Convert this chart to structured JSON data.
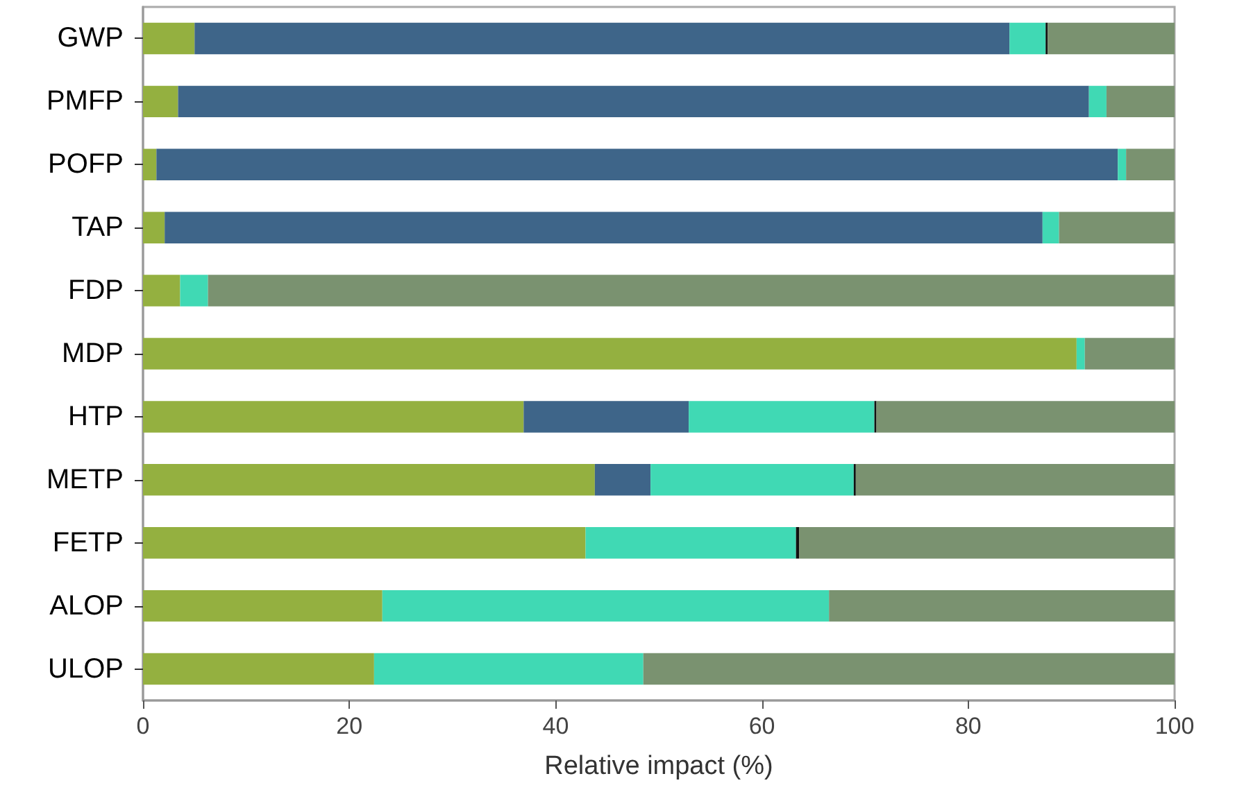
{
  "chart_data": {
    "type": "bar",
    "orientation": "horizontal",
    "stacked": true,
    "xlabel": "Relative impact (%)",
    "categories": [
      "GWP",
      "PMFP",
      "POFP",
      "TAP",
      "FDP",
      "MDP",
      "HTP",
      "METP",
      "FETP",
      "ALOP",
      "ULOP"
    ],
    "series": [
      {
        "color": "#94b040",
        "values": [
          5.0,
          3.4,
          1.3,
          2.1,
          3.6,
          90.5,
          36.9,
          43.8,
          42.9,
          23.2,
          22.4
        ]
      },
      {
        "color": "#3e6589",
        "values": [
          79.0,
          88.3,
          93.2,
          85.1,
          null,
          null,
          16.0,
          5.4,
          null,
          null,
          null
        ]
      },
      {
        "color": "#40d9b4",
        "values": [
          3.5,
          1.7,
          0.8,
          1.6,
          2.7,
          0.8,
          18.0,
          19.7,
          20.4,
          43.3,
          26.1
        ]
      },
      {
        "color": "#111111",
        "values": [
          0.2,
          null,
          null,
          null,
          null,
          null,
          0.2,
          0.2,
          0.3,
          null,
          null
        ]
      },
      {
        "color": "#7a9270",
        "values": [
          12.3,
          6.6,
          4.7,
          11.2,
          93.7,
          8.7,
          28.9,
          30.9,
          36.4,
          33.5,
          51.5
        ]
      }
    ],
    "xlim": [
      0,
      100
    ],
    "xticks": [
      0,
      20,
      40,
      60,
      80,
      100
    ],
    "grid": false
  }
}
